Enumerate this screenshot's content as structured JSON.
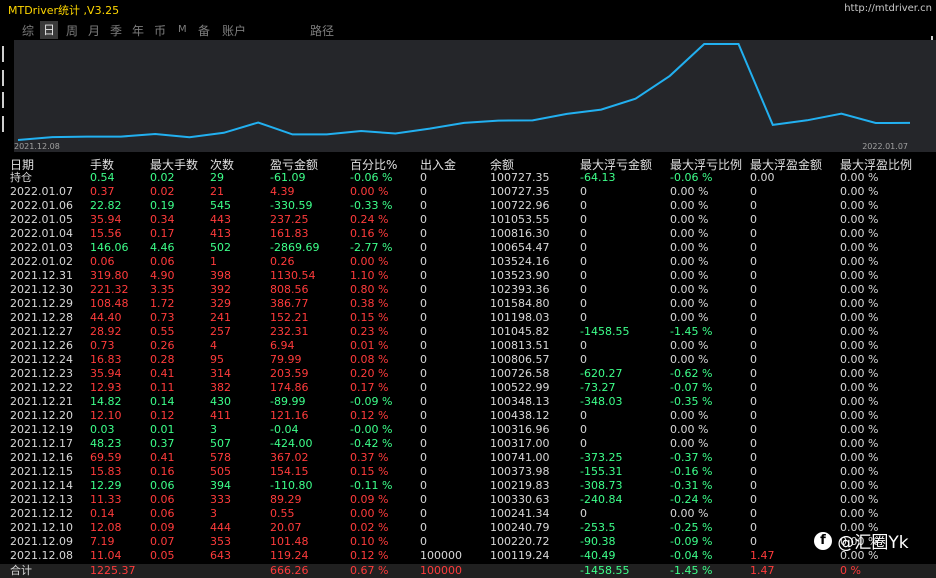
{
  "app": {
    "title": "MTDriver统计 ,V3.25",
    "url": "http://mtdriver.cn"
  },
  "tabs": [
    {
      "label": "综",
      "active": false
    },
    {
      "label": "日",
      "active": true
    },
    {
      "label": "周",
      "active": false
    },
    {
      "label": "月",
      "active": false
    },
    {
      "label": "季",
      "active": false
    },
    {
      "label": "年",
      "active": false
    },
    {
      "label": "币",
      "active": false
    },
    {
      "label": "M",
      "active": false
    },
    {
      "label": "备",
      "active": false
    },
    {
      "label": "账户",
      "active": false
    },
    {
      "label": "路径",
      "active": false
    }
  ],
  "colors": {
    "profit": "#ff3b3b",
    "loss": "#3dff8a",
    "neutral": "#d8d8d8",
    "line": "#22b0f0",
    "title": "#ffd700"
  },
  "chart_data": {
    "type": "line",
    "x_start_label": "2021.12.08",
    "x_end_label": "2022.01.07",
    "x": [
      "2021.12.08",
      "2021.12.09",
      "2021.12.10",
      "2021.12.12",
      "2021.12.13",
      "2021.12.14",
      "2021.12.15",
      "2021.12.16",
      "2021.12.17",
      "2021.12.19",
      "2021.12.20",
      "2021.12.21",
      "2021.12.22",
      "2021.12.23",
      "2021.12.24",
      "2021.12.26",
      "2021.12.27",
      "2021.12.28",
      "2021.12.29",
      "2021.12.30",
      "2021.12.31",
      "2022.01.02",
      "2022.01.03",
      "2022.01.04",
      "2022.01.05",
      "2022.01.06",
      "2022.01.07"
    ],
    "values": [
      100119.24,
      100220.72,
      100240.79,
      100241.34,
      100330.63,
      100219.83,
      100373.98,
      100741.0,
      100317.0,
      100316.96,
      100438.12,
      100348.13,
      100522.99,
      100726.58,
      100806.57,
      100813.51,
      101045.82,
      101198.03,
      101584.8,
      102393.36,
      103523.9,
      103524.16,
      100654.47,
      100816.3,
      101053.55,
      100722.96,
      100727.35
    ]
  },
  "columns": [
    "日期",
    "手数",
    "最大手数",
    "次数",
    "盈亏金额",
    "百分比%",
    "出入金",
    "余额",
    "最大浮亏金额",
    "最大浮亏比例",
    "最大浮盈金额",
    "最大浮盈比例"
  ],
  "rows": [
    {
      "tone": "loss",
      "cells": [
        "持仓",
        "0.54",
        "0.02",
        "29",
        "-61.09",
        "-0.06 %",
        "0",
        "100727.35",
        "-64.13",
        "-0.06 %",
        "0.00",
        "0.00 %"
      ]
    },
    {
      "tone": "profit",
      "cells": [
        "2022.01.07",
        "0.37",
        "0.02",
        "21",
        "4.39",
        "0.00 %",
        "0",
        "100727.35",
        "0",
        "0.00 %",
        "0",
        "0.00 %"
      ]
    },
    {
      "tone": "loss",
      "cells": [
        "2022.01.06",
        "22.82",
        "0.19",
        "545",
        "-330.59",
        "-0.33 %",
        "0",
        "100722.96",
        "0",
        "0.00 %",
        "0",
        "0.00 %"
      ]
    },
    {
      "tone": "profit",
      "cells": [
        "2022.01.05",
        "35.94",
        "0.34",
        "443",
        "237.25",
        "0.24 %",
        "0",
        "101053.55",
        "0",
        "0.00 %",
        "0",
        "0.00 %"
      ]
    },
    {
      "tone": "profit",
      "cells": [
        "2022.01.04",
        "15.56",
        "0.17",
        "413",
        "161.83",
        "0.16 %",
        "0",
        "100816.30",
        "0",
        "0.00 %",
        "0",
        "0.00 %"
      ]
    },
    {
      "tone": "loss",
      "cells": [
        "2022.01.03",
        "146.06",
        "4.46",
        "502",
        "-2869.69",
        "-2.77 %",
        "0",
        "100654.47",
        "0",
        "0.00 %",
        "0",
        "0.00 %"
      ]
    },
    {
      "tone": "profit",
      "cells": [
        "2022.01.02",
        "0.06",
        "0.06",
        "1",
        "0.26",
        "0.00 %",
        "0",
        "103524.16",
        "0",
        "0.00 %",
        "0",
        "0.00 %"
      ]
    },
    {
      "tone": "profit",
      "cells": [
        "2021.12.31",
        "319.80",
        "4.90",
        "398",
        "1130.54",
        "1.10 %",
        "0",
        "103523.90",
        "0",
        "0.00 %",
        "0",
        "0.00 %"
      ]
    },
    {
      "tone": "profit",
      "cells": [
        "2021.12.30",
        "221.32",
        "3.35",
        "392",
        "808.56",
        "0.80 %",
        "0",
        "102393.36",
        "0",
        "0.00 %",
        "0",
        "0.00 %"
      ]
    },
    {
      "tone": "profit",
      "cells": [
        "2021.12.29",
        "108.48",
        "1.72",
        "329",
        "386.77",
        "0.38 %",
        "0",
        "101584.80",
        "0",
        "0.00 %",
        "0",
        "0.00 %"
      ]
    },
    {
      "tone": "profit",
      "cells": [
        "2021.12.28",
        "44.40",
        "0.73",
        "241",
        "152.21",
        "0.15 %",
        "0",
        "101198.03",
        "0",
        "0.00 %",
        "0",
        "0.00 %"
      ]
    },
    {
      "tone": "profit",
      "cells": [
        "2021.12.27",
        "28.92",
        "0.55",
        "257",
        "232.31",
        "0.23 %",
        "0",
        "101045.82",
        "-1458.55",
        "-1.45 %",
        "0",
        "0.00 %"
      ]
    },
    {
      "tone": "profit",
      "cells": [
        "2021.12.26",
        "0.73",
        "0.26",
        "4",
        "6.94",
        "0.01 %",
        "0",
        "100813.51",
        "0",
        "0.00 %",
        "0",
        "0.00 %"
      ]
    },
    {
      "tone": "profit",
      "cells": [
        "2021.12.24",
        "16.83",
        "0.28",
        "95",
        "79.99",
        "0.08 %",
        "0",
        "100806.57",
        "0",
        "0.00 %",
        "0",
        "0.00 %"
      ]
    },
    {
      "tone": "profit",
      "cells": [
        "2021.12.23",
        "35.94",
        "0.41",
        "314",
        "203.59",
        "0.20 %",
        "0",
        "100726.58",
        "-620.27",
        "-0.62 %",
        "0",
        "0.00 %"
      ]
    },
    {
      "tone": "profit",
      "cells": [
        "2021.12.22",
        "12.93",
        "0.11",
        "382",
        "174.86",
        "0.17 %",
        "0",
        "100522.99",
        "-73.27",
        "-0.07 %",
        "0",
        "0.00 %"
      ]
    },
    {
      "tone": "loss",
      "cells": [
        "2021.12.21",
        "14.82",
        "0.14",
        "430",
        "-89.99",
        "-0.09 %",
        "0",
        "100348.13",
        "-348.03",
        "-0.35 %",
        "0",
        "0.00 %"
      ]
    },
    {
      "tone": "profit",
      "cells": [
        "2021.12.20",
        "12.10",
        "0.12",
        "411",
        "121.16",
        "0.12 %",
        "0",
        "100438.12",
        "0",
        "0.00 %",
        "0",
        "0.00 %"
      ]
    },
    {
      "tone": "loss",
      "cells": [
        "2021.12.19",
        "0.03",
        "0.01",
        "3",
        "-0.04",
        "-0.00 %",
        "0",
        "100316.96",
        "0",
        "0.00 %",
        "0",
        "0.00 %"
      ]
    },
    {
      "tone": "loss",
      "cells": [
        "2021.12.17",
        "48.23",
        "0.37",
        "507",
        "-424.00",
        "-0.42 %",
        "0",
        "100317.00",
        "0",
        "0.00 %",
        "0",
        "0.00 %"
      ]
    },
    {
      "tone": "profit",
      "cells": [
        "2021.12.16",
        "69.59",
        "0.41",
        "578",
        "367.02",
        "0.37 %",
        "0",
        "100741.00",
        "-373.25",
        "-0.37 %",
        "0",
        "0.00 %"
      ]
    },
    {
      "tone": "profit",
      "cells": [
        "2021.12.15",
        "15.83",
        "0.16",
        "505",
        "154.15",
        "0.15 %",
        "0",
        "100373.98",
        "-155.31",
        "-0.16 %",
        "0",
        "0.00 %"
      ]
    },
    {
      "tone": "loss",
      "cells": [
        "2021.12.14",
        "12.29",
        "0.06",
        "394",
        "-110.80",
        "-0.11 %",
        "0",
        "100219.83",
        "-308.73",
        "-0.31 %",
        "0",
        "0.00 %"
      ]
    },
    {
      "tone": "profit",
      "cells": [
        "2021.12.13",
        "11.33",
        "0.06",
        "333",
        "89.29",
        "0.09 %",
        "0",
        "100330.63",
        "-240.84",
        "-0.24 %",
        "0",
        "0.00 %"
      ]
    },
    {
      "tone": "profit",
      "cells": [
        "2021.12.12",
        "0.14",
        "0.06",
        "3",
        "0.55",
        "0.00 %",
        "0",
        "100241.34",
        "0",
        "0.00 %",
        "0",
        "0.00 %"
      ]
    },
    {
      "tone": "profit",
      "cells": [
        "2021.12.10",
        "12.08",
        "0.09",
        "444",
        "20.07",
        "0.02 %",
        "0",
        "100240.79",
        "-253.5",
        "-0.25 %",
        "0",
        "0.00 %"
      ]
    },
    {
      "tone": "profit",
      "cells": [
        "2021.12.09",
        "7.19",
        "0.07",
        "353",
        "101.48",
        "0.10 %",
        "0",
        "100220.72",
        "-90.38",
        "-0.09 %",
        "0",
        "0.00 %"
      ]
    },
    {
      "tone": "profit",
      "cells": [
        "2021.12.08",
        "11.04",
        "0.05",
        "643",
        "119.24",
        "0.12 %",
        "100000",
        "100119.24",
        "-40.49",
        "-0.04 %",
        "1.47",
        "0.00 %"
      ]
    }
  ],
  "total": [
    "合计",
    "1225.37",
    "",
    "",
    "666.26",
    "0.67 %",
    "100000",
    "",
    "-1458.55",
    "-1.45 %",
    "1.47",
    "0 %"
  ],
  "watermark": {
    "icon": "f",
    "text": "@汇圈Yk"
  }
}
